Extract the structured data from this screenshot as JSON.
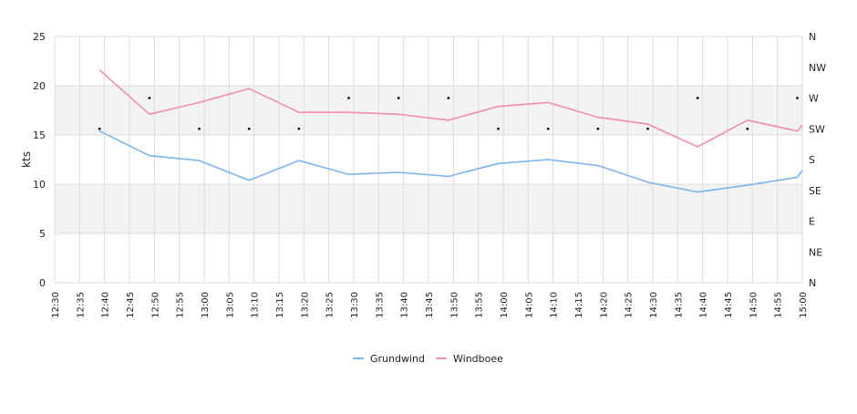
{
  "chart_data": {
    "type": "line",
    "ylabel": "kts",
    "ylim": [
      0,
      25
    ],
    "y_ticks": [
      "0",
      "5",
      "10",
      "15",
      "20",
      "25"
    ],
    "right_axis": {
      "labels": [
        "N",
        "NE",
        "E",
        "SE",
        "S",
        "SW",
        "W",
        "NW",
        "N"
      ]
    },
    "x_ticks": [
      "12:30",
      "12:35",
      "12:40",
      "12:45",
      "12:50",
      "12:55",
      "13:00",
      "13:05",
      "13:10",
      "13:15",
      "13:20",
      "13:25",
      "13:30",
      "13:35",
      "13:40",
      "13:45",
      "13:50",
      "13:55",
      "14:00",
      "14:05",
      "14:10",
      "14:15",
      "14:20",
      "14:25",
      "14:30",
      "14:35",
      "14:40",
      "14:45",
      "14:50",
      "14:55",
      "15:00"
    ],
    "xlim_minutes": [
      0,
      150
    ],
    "grid": true,
    "bands": [
      [
        5,
        10
      ],
      [
        15,
        20
      ]
    ],
    "legend_position": "bottom-center",
    "series": [
      {
        "name": "Grundwind",
        "color": "#7cb5ec",
        "points": [
          [
            "12:39",
            15.4
          ],
          [
            "12:49",
            12.9
          ],
          [
            "12:59",
            12.4
          ],
          [
            "13:09",
            10.4
          ],
          [
            "13:19",
            12.4
          ],
          [
            "13:29",
            11.0
          ],
          [
            "13:39",
            11.2
          ],
          [
            "13:49",
            10.8
          ],
          [
            "13:59",
            12.1
          ],
          [
            "14:09",
            12.5
          ],
          [
            "14:19",
            11.9
          ],
          [
            "14:29",
            10.2
          ],
          [
            "14:39",
            9.2
          ],
          [
            "14:49",
            9.9
          ],
          [
            "14:59",
            10.7
          ],
          [
            "15:00",
            11.4
          ]
        ]
      },
      {
        "name": "Windboee",
        "color": "#f08cb8",
        "points": [
          [
            "12:39",
            21.6
          ],
          [
            "12:49",
            17.1
          ],
          [
            "12:59",
            18.3
          ],
          [
            "13:09",
            19.7
          ],
          [
            "13:19",
            17.3
          ],
          [
            "13:29",
            17.3
          ],
          [
            "13:39",
            17.1
          ],
          [
            "13:49",
            16.5
          ],
          [
            "13:59",
            17.9
          ],
          [
            "14:09",
            18.3
          ],
          [
            "14:19",
            16.8
          ],
          [
            "14:29",
            16.1
          ],
          [
            "14:39",
            13.8
          ],
          [
            "14:49",
            16.5
          ],
          [
            "14:59",
            15.4
          ],
          [
            "15:00",
            16.0
          ]
        ]
      }
    ],
    "direction_markers": {
      "color": "#111111",
      "points": [
        [
          "12:39",
          "SW"
        ],
        [
          "12:49",
          "W"
        ],
        [
          "12:59",
          "SW"
        ],
        [
          "13:09",
          "SW"
        ],
        [
          "13:19",
          "SW"
        ],
        [
          "13:29",
          "W"
        ],
        [
          "13:39",
          "W"
        ],
        [
          "13:49",
          "W"
        ],
        [
          "13:59",
          "SW"
        ],
        [
          "14:09",
          "SW"
        ],
        [
          "14:19",
          "SW"
        ],
        [
          "14:29",
          "SW"
        ],
        [
          "14:39",
          "W"
        ],
        [
          "14:49",
          "SW"
        ],
        [
          "14:59",
          "W"
        ]
      ]
    }
  }
}
